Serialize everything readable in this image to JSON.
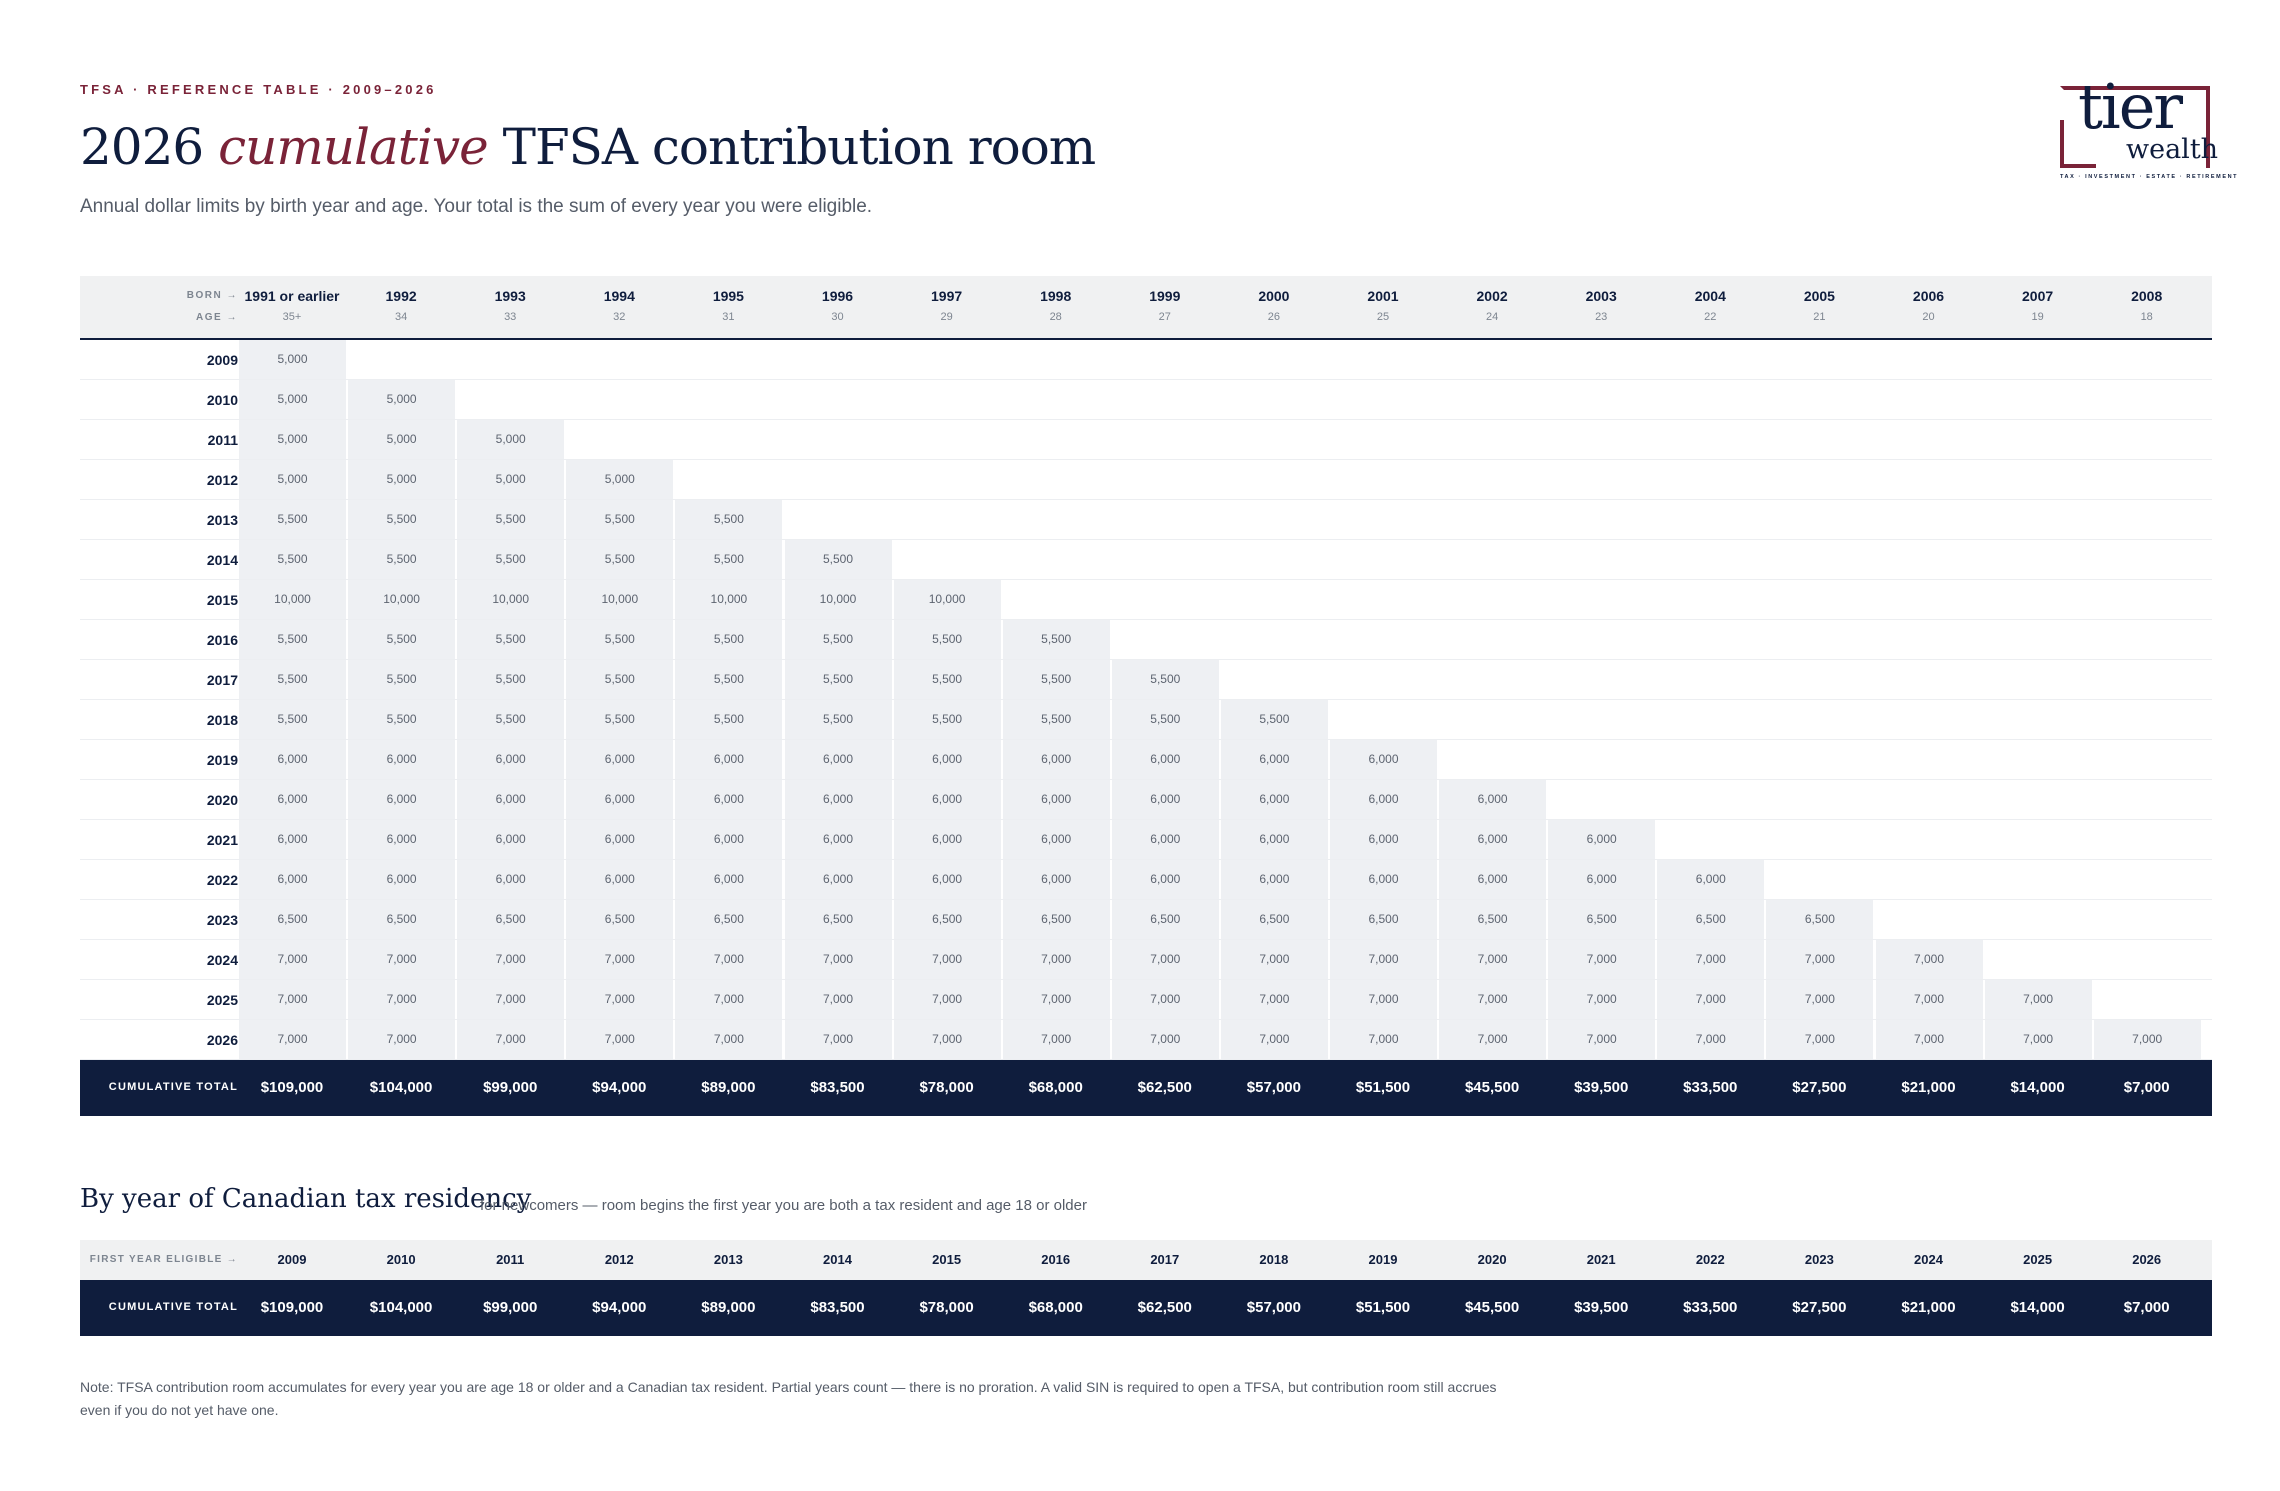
{
  "header": {
    "eyebrow": "TFSA · REFERENCE TABLE · 2009–2026",
    "title_pre": "2026",
    "title_em": "cumulative",
    "title_post": "TFSA contribution room",
    "subtitle": "Annual dollar limits by birth year and age. Your total is the sum of every year you were eligible."
  },
  "logo": {
    "word1": "tier",
    "word2": "wealth",
    "tagline": "TAX · INVESTMENT · ESTATE · RETIREMENT"
  },
  "table": {
    "born_label": "BORN →",
    "age_label": "AGE →",
    "columns": [
      {
        "born": "1991 or earlier",
        "age": "35+"
      },
      {
        "born": "1992",
        "age": "34"
      },
      {
        "born": "1993",
        "age": "33"
      },
      {
        "born": "1994",
        "age": "32"
      },
      {
        "born": "1995",
        "age": "31"
      },
      {
        "born": "1996",
        "age": "30"
      },
      {
        "born": "1997",
        "age": "29"
      },
      {
        "born": "1998",
        "age": "28"
      },
      {
        "born": "1999",
        "age": "27"
      },
      {
        "born": "2000",
        "age": "26"
      },
      {
        "born": "2001",
        "age": "25"
      },
      {
        "born": "2002",
        "age": "24"
      },
      {
        "born": "2003",
        "age": "23"
      },
      {
        "born": "2004",
        "age": "22"
      },
      {
        "born": "2005",
        "age": "21"
      },
      {
        "born": "2006",
        "age": "20"
      },
      {
        "born": "2007",
        "age": "19"
      },
      {
        "born": "2008",
        "age": "18"
      }
    ],
    "rows": [
      {
        "year": "2009",
        "limit": "5,000"
      },
      {
        "year": "2010",
        "limit": "5,000"
      },
      {
        "year": "2011",
        "limit": "5,000"
      },
      {
        "year": "2012",
        "limit": "5,000"
      },
      {
        "year": "2013",
        "limit": "5,500"
      },
      {
        "year": "2014",
        "limit": "5,500"
      },
      {
        "year": "2015",
        "limit": "10,000"
      },
      {
        "year": "2016",
        "limit": "5,500"
      },
      {
        "year": "2017",
        "limit": "5,500"
      },
      {
        "year": "2018",
        "limit": "5,500"
      },
      {
        "year": "2019",
        "limit": "6,000"
      },
      {
        "year": "2020",
        "limit": "6,000"
      },
      {
        "year": "2021",
        "limit": "6,000"
      },
      {
        "year": "2022",
        "limit": "6,000"
      },
      {
        "year": "2023",
        "limit": "6,500"
      },
      {
        "year": "2024",
        "limit": "7,000"
      },
      {
        "year": "2025",
        "limit": "7,000"
      },
      {
        "year": "2026",
        "limit": "7,000"
      }
    ],
    "total_label": "CUMULATIVE TOTAL",
    "totals": [
      "$109,000",
      "$104,000",
      "$99,000",
      "$94,000",
      "$89,000",
      "$83,500",
      "$78,000",
      "$68,000",
      "$62,500",
      "$57,000",
      "$51,500",
      "$45,500",
      "$39,500",
      "$33,500",
      "$27,500",
      "$21,000",
      "$14,000",
      "$7,000"
    ]
  },
  "residency": {
    "title": "By year of Canadian tax residency",
    "subtitle": "for newcomers — room begins the first year you are both a tax resident and age 18 or older",
    "first_label": "FIRST YEAR ELIGIBLE →",
    "years": [
      "2009",
      "2010",
      "2011",
      "2012",
      "2013",
      "2014",
      "2015",
      "2016",
      "2017",
      "2018",
      "2019",
      "2020",
      "2021",
      "2022",
      "2023",
      "2024",
      "2025",
      "2026"
    ],
    "total_label": "CUMULATIVE TOTAL",
    "totals": [
      "$109,000",
      "$104,000",
      "$99,000",
      "$94,000",
      "$89,000",
      "$83,500",
      "$78,000",
      "$68,000",
      "$62,500",
      "$57,000",
      "$51,500",
      "$45,500",
      "$39,500",
      "$33,500",
      "$27,500",
      "$21,000",
      "$14,000",
      "$7,000"
    ]
  },
  "note": "Note: TFSA contribution room accumulates for every year you are age 18 or older and a Canadian tax resident. Partial years count — there is no proration. A valid SIN is required to open a TFSA, but contribution room still accrues even if you do not yet have one."
}
